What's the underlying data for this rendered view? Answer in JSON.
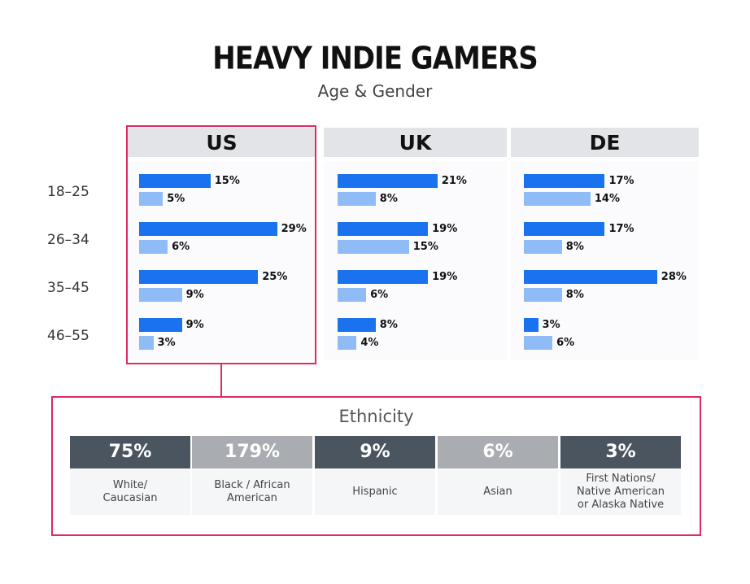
{
  "title": "HEAVY INDIE GAMERS",
  "subtitle": "Age & Gender",
  "chart_data": {
    "type": "bar",
    "title": "HEAVY INDIE GAMERS",
    "subtitle": "Age & Gender",
    "categories": [
      "18-25",
      "26-34",
      "35-45",
      "46-55"
    ],
    "xlim": [
      0,
      30
    ],
    "countries": [
      {
        "name": "US",
        "series": [
          {
            "values": [
              15,
              29,
              25,
              9
            ]
          },
          {
            "values": [
              5,
              6,
              9,
              3
            ]
          }
        ]
      },
      {
        "name": "UK",
        "series": [
          {
            "values": [
              21,
              19,
              19,
              8
            ]
          },
          {
            "values": [
              8,
              15,
              6,
              4
            ]
          }
        ]
      },
      {
        "name": "DE",
        "series": [
          {
            "values": [
              17,
              17,
              28,
              3
            ]
          },
          {
            "values": [
              14,
              8,
              8,
              6
            ]
          }
        ]
      }
    ],
    "colors": {
      "primary_bar": "#1a72ee",
      "secondary_bar": "#8fbcf7",
      "highlight_border": "#e0295f"
    }
  },
  "ethnicity": {
    "title": "Ethnicity",
    "items": [
      {
        "value": "75%",
        "label": "White/\nCaucasian",
        "shade": "dark"
      },
      {
        "value": "179%",
        "label": "Black / African\nAmerican",
        "shade": "light"
      },
      {
        "value": "9%",
        "label": "Hispanic",
        "shade": "dark"
      },
      {
        "value": "6%",
        "label": "Asian",
        "shade": "light"
      },
      {
        "value": "3%",
        "label": "First Nations/\nNative American\nor Alaska Native",
        "shade": "dark"
      }
    ]
  }
}
